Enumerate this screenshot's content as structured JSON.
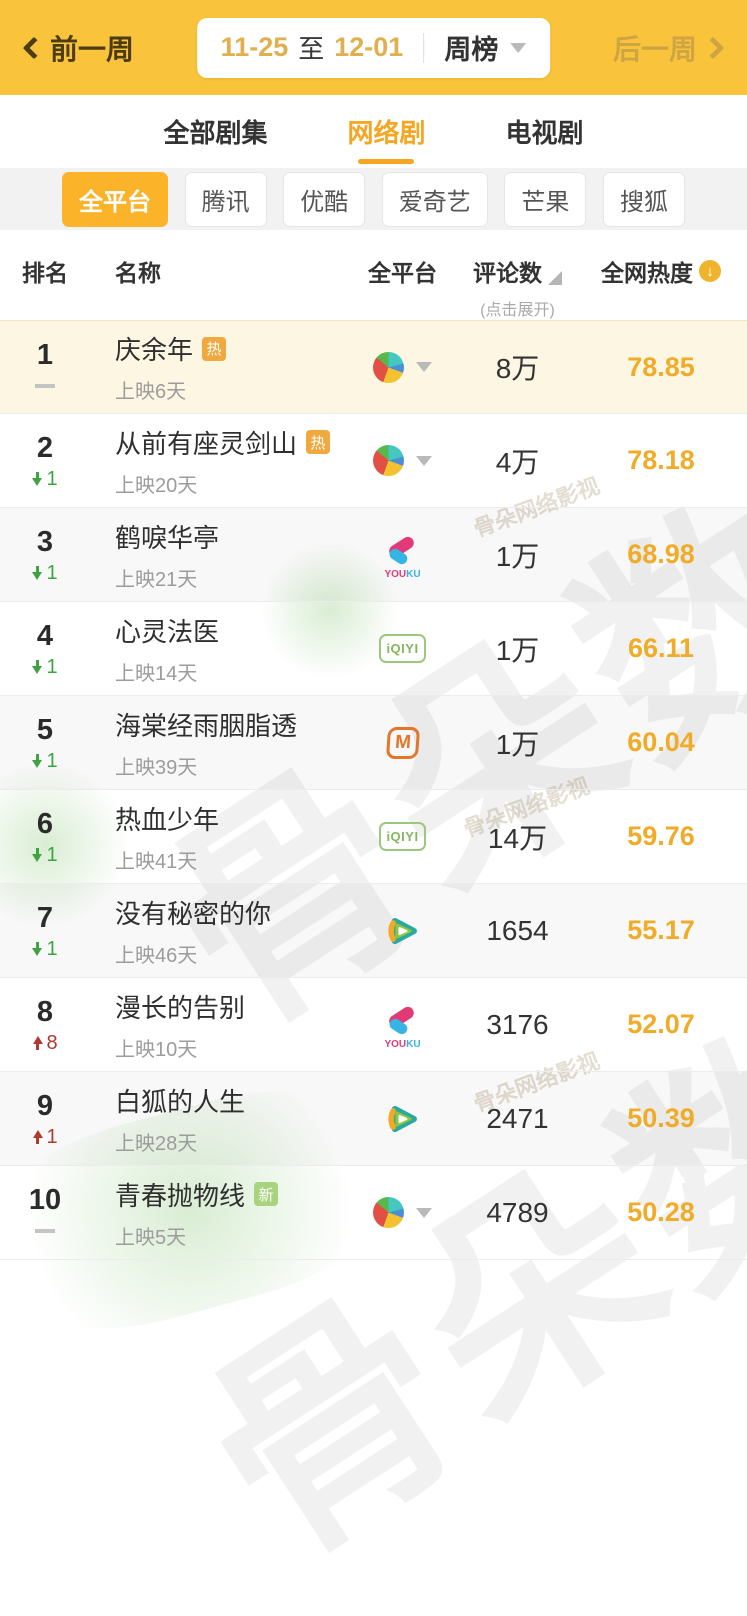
{
  "topbar": {
    "prev_label": "前一周",
    "date_start": "11-25",
    "date_separator": "至",
    "date_end": "12-01",
    "period_label": "周榜",
    "next_label": "后一周"
  },
  "tabs": [
    {
      "key": "all-series",
      "label": "全部剧集",
      "active": false
    },
    {
      "key": "web-series",
      "label": "网络剧",
      "active": true
    },
    {
      "key": "tv-series",
      "label": "电视剧",
      "active": false
    }
  ],
  "platform_filters": [
    {
      "key": "all-platforms",
      "label": "全平台",
      "active": true
    },
    {
      "key": "tencent",
      "label": "腾讯",
      "active": false
    },
    {
      "key": "youku",
      "label": "优酷",
      "active": false
    },
    {
      "key": "iqiyi",
      "label": "爱奇艺",
      "active": false
    },
    {
      "key": "mango",
      "label": "芒果",
      "active": false
    },
    {
      "key": "sohu",
      "label": "搜狐",
      "active": false
    }
  ],
  "table": {
    "columns": {
      "rank": "排名",
      "name": "名称",
      "platform": "全平台",
      "comments": "评论数",
      "comments_hint": "(点击展开)",
      "heat": "全网热度"
    },
    "rows": [
      {
        "rank": "1",
        "change": "none",
        "change_value": "",
        "name": "庆余年",
        "badge": "热",
        "days": "上映6天",
        "platform": "all",
        "comments": "8万",
        "heat": "78.85",
        "highlight": true
      },
      {
        "rank": "2",
        "change": "down",
        "change_value": "1",
        "name": "从前有座灵剑山",
        "badge": "热",
        "days": "上映20天",
        "platform": "all",
        "comments": "4万",
        "heat": "78.18",
        "highlight": false
      },
      {
        "rank": "3",
        "change": "down",
        "change_value": "1",
        "name": "鹤唳华亭",
        "badge": "",
        "days": "上映21天",
        "platform": "youku",
        "comments": "1万",
        "heat": "68.98",
        "highlight": false
      },
      {
        "rank": "4",
        "change": "down",
        "change_value": "1",
        "name": "心灵法医",
        "badge": "",
        "days": "上映14天",
        "platform": "iqiyi",
        "comments": "1万",
        "heat": "66.11",
        "highlight": false
      },
      {
        "rank": "5",
        "change": "down",
        "change_value": "1",
        "name": "海棠经雨胭脂透",
        "badge": "",
        "days": "上映39天",
        "platform": "mango",
        "comments": "1万",
        "heat": "60.04",
        "highlight": false
      },
      {
        "rank": "6",
        "change": "down",
        "change_value": "1",
        "name": "热血少年",
        "badge": "",
        "days": "上映41天",
        "platform": "iqiyi",
        "comments": "14万",
        "heat": "59.76",
        "highlight": false
      },
      {
        "rank": "7",
        "change": "down",
        "change_value": "1",
        "name": "没有秘密的你",
        "badge": "",
        "days": "上映46天",
        "platform": "tencent",
        "comments": "1654",
        "heat": "55.17",
        "highlight": false
      },
      {
        "rank": "8",
        "change": "up",
        "change_value": "8",
        "name": "漫长的告别",
        "badge": "",
        "days": "上映10天",
        "platform": "youku",
        "comments": "3176",
        "heat": "52.07",
        "highlight": false
      },
      {
        "rank": "9",
        "change": "up",
        "change_value": "1",
        "name": "白狐的人生",
        "badge": "",
        "days": "上映28天",
        "platform": "tencent",
        "comments": "2471",
        "heat": "50.39",
        "highlight": false
      },
      {
        "rank": "10",
        "change": "none",
        "change_value": "",
        "name": "青春抛物线",
        "badge": "新",
        "days": "上映5天",
        "platform": "all",
        "comments": "4789",
        "heat": "50.28",
        "highlight": false
      }
    ]
  },
  "platform_icons": {
    "all": {
      "name": "all-platforms-pie"
    },
    "youku": {
      "label_a": "YOU",
      "label_b": "KU"
    },
    "iqiyi": {
      "label": "iQIYI"
    },
    "mango": {
      "label": "M"
    },
    "tencent": {
      "name": "tencent-video-play"
    }
  },
  "icons": {
    "sort_descending_glyph": "↓"
  },
  "watermark": {
    "large": "骨朵数据",
    "small": "骨朵网络影视"
  },
  "colors": {
    "header_yellow": "#F9C43B",
    "active_tab_orange": "#F5A623",
    "active_filter_orange": "#FBB32A",
    "heat_gold": "#F0AC28",
    "rank_up_red": "#AF3A31",
    "rank_down_green": "#3FA344",
    "hot_badge": "#F0A93F",
    "new_badge": "#A8D37F"
  }
}
